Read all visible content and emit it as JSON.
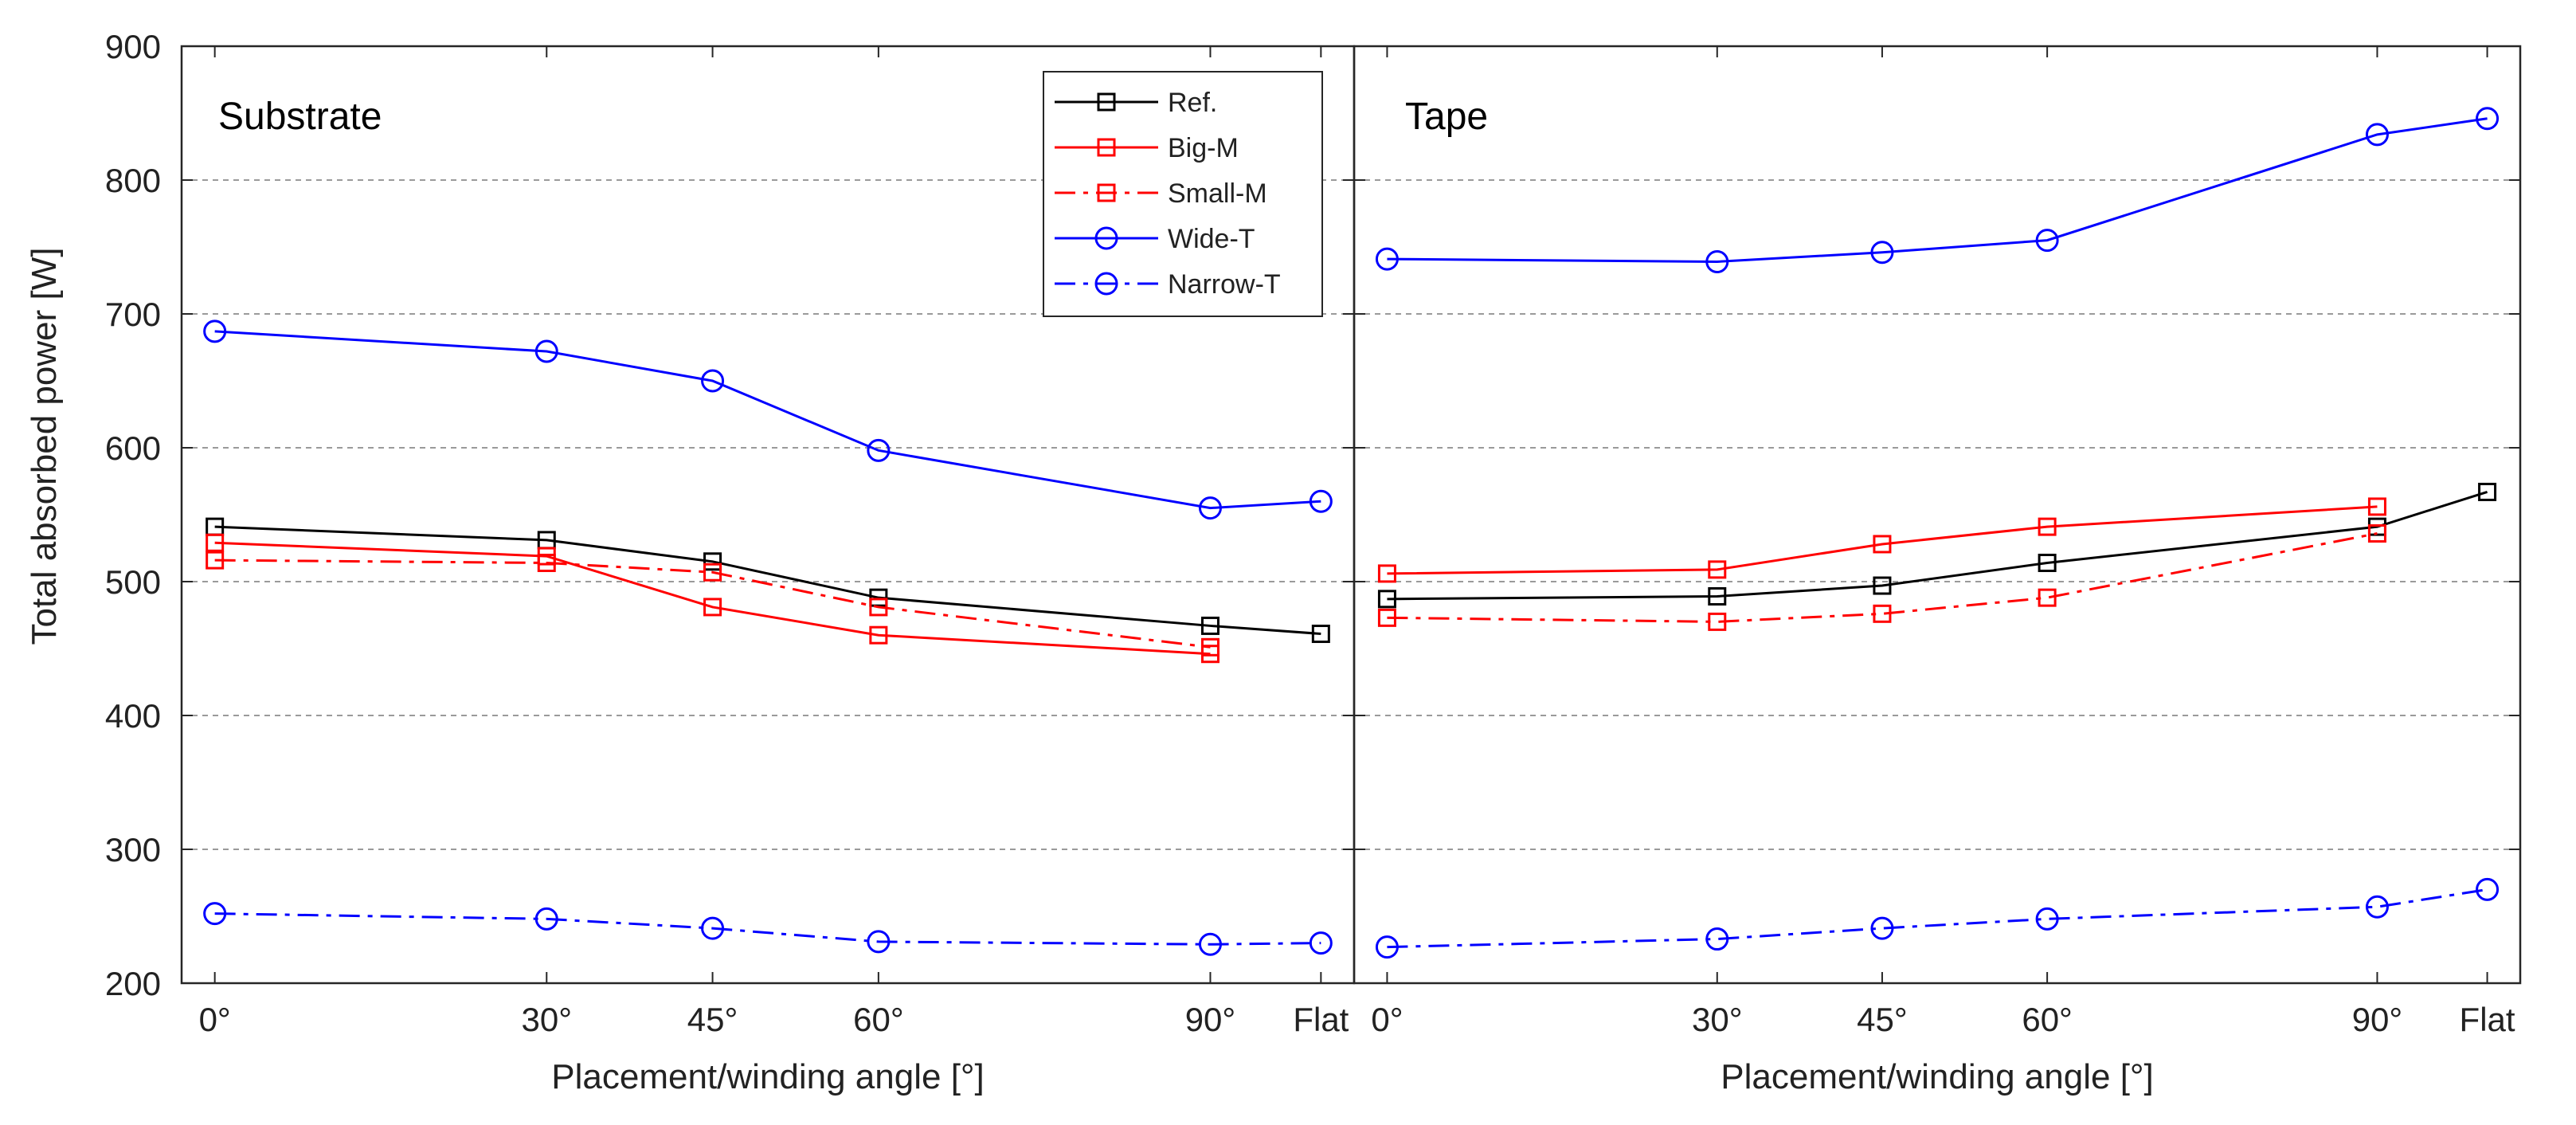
{
  "figure": {
    "ylabel": "Total absorbed power [W]"
  },
  "chart_data": [
    {
      "type": "line",
      "title": "Substrate",
      "xlabel": "Placement/winding angle [°]",
      "ylabel": "Total absorbed power [W]",
      "ylim": [
        200,
        900
      ],
      "yticks": [
        200,
        300,
        400,
        500,
        600,
        700,
        800,
        900
      ],
      "grid": "horizontal dashed",
      "categories": [
        "0°",
        "30°",
        "45°",
        "60°",
        "90°",
        "Flat"
      ],
      "x": [
        0,
        30,
        45,
        60,
        90,
        100
      ],
      "xlim": [
        -3,
        103
      ],
      "series": [
        {
          "name": "Ref.",
          "color": "#000000",
          "dash": "solid",
          "marker": "square",
          "x": [
            0,
            30,
            45,
            60,
            90,
            100
          ],
          "values": [
            541,
            531,
            515,
            488,
            467,
            461
          ]
        },
        {
          "name": "Big-M",
          "color": "#ff0000",
          "dash": "solid",
          "marker": "square",
          "x": [
            0,
            30,
            45,
            60,
            90
          ],
          "values": [
            529,
            519,
            481,
            460,
            446
          ]
        },
        {
          "name": "Small-M",
          "color": "#ff0000",
          "dash": "dashdot",
          "marker": "square",
          "x": [
            0,
            30,
            45,
            60,
            90
          ],
          "values": [
            516,
            514,
            507,
            481,
            451
          ]
        },
        {
          "name": "Wide-T",
          "color": "#0000ff",
          "dash": "solid",
          "marker": "circle",
          "x": [
            0,
            30,
            45,
            60,
            90,
            100
          ],
          "values": [
            687,
            672,
            650,
            598,
            555,
            560
          ]
        },
        {
          "name": "Narrow-T",
          "color": "#0000ff",
          "dash": "dashdot",
          "marker": "circle",
          "x": [
            0,
            30,
            45,
            60,
            90,
            100
          ],
          "values": [
            252,
            248,
            241,
            231,
            229,
            230
          ]
        }
      ],
      "legend": {
        "placement": "top-right",
        "entries": [
          "Ref.",
          "Big-M",
          "Small-M",
          "Wide-T",
          "Narrow-T"
        ]
      }
    },
    {
      "type": "line",
      "title": "Tape",
      "xlabel": "Placement/winding angle [°]",
      "ylim": [
        200,
        900
      ],
      "yticks": [
        200,
        300,
        400,
        500,
        600,
        700,
        800,
        900
      ],
      "grid": "horizontal dashed",
      "categories": [
        "0°",
        "30°",
        "45°",
        "60°",
        "90°",
        "Flat"
      ],
      "x": [
        0,
        30,
        45,
        60,
        90,
        100
      ],
      "xlim": [
        -3,
        103
      ],
      "series": [
        {
          "name": "Ref.",
          "color": "#000000",
          "dash": "solid",
          "marker": "square",
          "x": [
            0,
            30,
            45,
            60,
            90,
            100
          ],
          "values": [
            487,
            489,
            497,
            514,
            541,
            567
          ]
        },
        {
          "name": "Big-M",
          "color": "#ff0000",
          "dash": "solid",
          "marker": "square",
          "x": [
            0,
            30,
            45,
            60,
            90
          ],
          "values": [
            506,
            509,
            528,
            541,
            556
          ]
        },
        {
          "name": "Small-M",
          "color": "#ff0000",
          "dash": "dashdot",
          "marker": "square",
          "x": [
            0,
            30,
            45,
            60,
            90
          ],
          "values": [
            473,
            470,
            476,
            488,
            536
          ]
        },
        {
          "name": "Wide-T",
          "color": "#0000ff",
          "dash": "solid",
          "marker": "circle",
          "x": [
            0,
            30,
            45,
            60,
            90,
            100
          ],
          "values": [
            741,
            739,
            746,
            755,
            834,
            846
          ]
        },
        {
          "name": "Narrow-T",
          "color": "#0000ff",
          "dash": "dashdot",
          "marker": "circle",
          "x": [
            0,
            30,
            45,
            60,
            90,
            100
          ],
          "values": [
            227,
            233,
            241,
            248,
            257,
            270
          ]
        }
      ]
    }
  ]
}
